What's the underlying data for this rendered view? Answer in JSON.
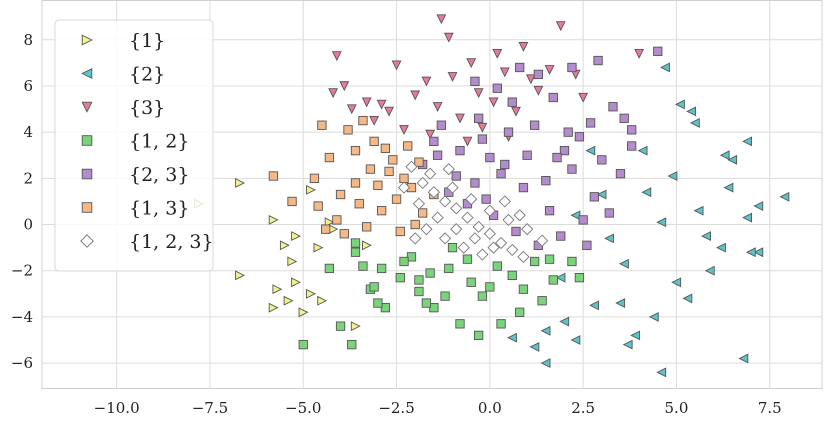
{
  "chart_data": {
    "type": "scatter",
    "title": "",
    "xlabel": "",
    "ylabel": "",
    "xlim": [
      -12.0,
      8.9
    ],
    "ylim": [
      -7.1,
      9.7
    ],
    "xticks": [
      -10.0,
      -7.5,
      -5.0,
      -2.5,
      0.0,
      2.5,
      5.0,
      7.5
    ],
    "xtick_labels": [
      "−10.0",
      "−7.5",
      "−5.0",
      "−2.5",
      "0.0",
      "2.5",
      "5.0",
      "7.5"
    ],
    "yticks": [
      -6,
      -4,
      -2,
      0,
      2,
      4,
      6,
      8
    ],
    "ytick_labels": [
      "−6",
      "−4",
      "−2",
      "0",
      "2",
      "4",
      "6",
      "8"
    ],
    "grid": true,
    "legend_position": "upper-left",
    "series": [
      {
        "name": "{1}",
        "marker": "triangle-right",
        "color": "#f2f28c",
        "points": [
          [
            -6.7,
            1.8
          ],
          [
            -7.8,
            0.9
          ],
          [
            -5.8,
            0.2
          ],
          [
            -5.5,
            -0.9
          ],
          [
            -5.3,
            -1.6
          ],
          [
            -5.7,
            -2.8
          ],
          [
            -5.4,
            -3.3
          ],
          [
            -5.2,
            -2.5
          ],
          [
            -4.8,
            -3.0
          ],
          [
            -5.0,
            -3.8
          ],
          [
            -4.5,
            -3.3
          ],
          [
            -5.2,
            -0.5
          ],
          [
            -4.6,
            -1.0
          ],
          [
            -5.8,
            -3.6
          ],
          [
            -6.7,
            -2.2
          ],
          [
            -4.2,
            -0.2
          ],
          [
            -3.6,
            -4.4
          ],
          [
            -3.3,
            -0.9
          ],
          [
            -4.8,
            1.5
          ],
          [
            -4.3,
            0.1
          ]
        ]
      },
      {
        "name": "{2}",
        "marker": "triangle-left",
        "color": "#5bc4ca",
        "points": [
          [
            4.7,
            6.8
          ],
          [
            5.4,
            4.9
          ],
          [
            5.1,
            5.2
          ],
          [
            5.5,
            4.4
          ],
          [
            6.9,
            3.6
          ],
          [
            6.5,
            2.8
          ],
          [
            6.3,
            3.0
          ],
          [
            7.9,
            1.2
          ],
          [
            7.2,
            -1.2
          ],
          [
            7.0,
            -1.2
          ],
          [
            6.8,
            -5.8
          ],
          [
            4.6,
            -6.4
          ],
          [
            1.5,
            -6.0
          ],
          [
            1.5,
            -4.6
          ],
          [
            2.3,
            -5.0
          ],
          [
            3.7,
            -5.2
          ],
          [
            5.0,
            -2.5
          ],
          [
            5.8,
            -0.5
          ],
          [
            4.2,
            1.4
          ],
          [
            3.2,
            -0.6
          ],
          [
            1.9,
            -2.3
          ],
          [
            2.7,
            3.2
          ],
          [
            2.0,
            -4.2
          ],
          [
            3.5,
            -3.4
          ],
          [
            6.4,
            1.6
          ],
          [
            5.9,
            -2.0
          ],
          [
            6.9,
            0.3
          ],
          [
            4.4,
            -4.0
          ],
          [
            2.8,
            -3.5
          ],
          [
            4.1,
            3.2
          ],
          [
            5.6,
            0.6
          ],
          [
            3.6,
            -1.7
          ],
          [
            3.0,
            1.3
          ],
          [
            0.6,
            -4.9
          ],
          [
            1.2,
            -5.3
          ],
          [
            4.9,
            2.1
          ],
          [
            6.2,
            -1.0
          ],
          [
            7.2,
            0.8
          ],
          [
            5.3,
            -3.2
          ],
          [
            3.9,
            -4.8
          ],
          [
            2.3,
            0.4
          ],
          [
            4.6,
            0.1
          ]
        ]
      },
      {
        "name": "{3}",
        "marker": "triangle-down",
        "color": "#e87a96",
        "points": [
          [
            -1.3,
            8.9
          ],
          [
            -1.1,
            8.1
          ],
          [
            1.9,
            8.6
          ],
          [
            -4.1,
            7.3
          ],
          [
            -2.5,
            6.9
          ],
          [
            -1.7,
            6.2
          ],
          [
            -3.9,
            6.0
          ],
          [
            -4.2,
            5.7
          ],
          [
            -2.9,
            5.2
          ],
          [
            -1.0,
            6.4
          ],
          [
            -0.5,
            7.0
          ],
          [
            0.2,
            7.4
          ],
          [
            0.9,
            7.7
          ],
          [
            0.4,
            6.6
          ],
          [
            -0.3,
            5.7
          ],
          [
            0.7,
            4.9
          ],
          [
            1.3,
            5.8
          ],
          [
            -2.0,
            5.6
          ],
          [
            -3.1,
            4.5
          ],
          [
            -2.3,
            4.1
          ],
          [
            -1.6,
            3.9
          ],
          [
            -0.8,
            4.6
          ],
          [
            -1.4,
            5.1
          ],
          [
            -0.2,
            4.2
          ],
          [
            0.1,
            5.3
          ],
          [
            1.1,
            6.3
          ],
          [
            1.6,
            6.7
          ],
          [
            2.3,
            6.5
          ],
          [
            -3.7,
            5.0
          ],
          [
            -0.6,
            3.6
          ],
          [
            0.5,
            3.8
          ],
          [
            -2.7,
            4.9
          ],
          [
            2.5,
            5.5
          ],
          [
            4.0,
            7.4
          ],
          [
            -3.3,
            5.3
          ]
        ]
      },
      {
        "name": "{1, 2}",
        "marker": "square",
        "color": "#7bd47b",
        "points": [
          [
            -5.0,
            -5.2
          ],
          [
            -3.7,
            -5.2
          ],
          [
            -4.0,
            -4.4
          ],
          [
            -4.3,
            -1.9
          ],
          [
            -3.6,
            -1.2
          ],
          [
            -3.2,
            -2.8
          ],
          [
            -2.8,
            -3.6
          ],
          [
            -2.4,
            -2.3
          ],
          [
            -1.9,
            -2.9
          ],
          [
            -1.5,
            -3.6
          ],
          [
            -0.8,
            -4.3
          ],
          [
            -0.3,
            -4.8
          ],
          [
            0.3,
            -4.3
          ],
          [
            0.8,
            -3.8
          ],
          [
            1.4,
            -3.3
          ],
          [
            -1.1,
            -1.9
          ],
          [
            -0.5,
            -2.5
          ],
          [
            0.2,
            -1.8
          ],
          [
            0.9,
            -2.8
          ],
          [
            1.7,
            -2.4
          ],
          [
            2.2,
            -1.6
          ],
          [
            -2.1,
            -1.4
          ],
          [
            -1.0,
            -1.0
          ],
          [
            -3.4,
            -1.8
          ],
          [
            -2.3,
            -1.6
          ],
          [
            -3.1,
            -2.7
          ],
          [
            -1.6,
            -2.1
          ],
          [
            -0.2,
            -3.1
          ],
          [
            0.6,
            -2.2
          ],
          [
            1.2,
            -1.6
          ],
          [
            -3.6,
            -0.8
          ],
          [
            -2.9,
            -1.9
          ],
          [
            -1.7,
            -3.4
          ],
          [
            -1.9,
            -2.4
          ],
          [
            -0.6,
            -1.5
          ],
          [
            0.0,
            -2.7
          ],
          [
            -1.2,
            -3.1
          ],
          [
            1.6,
            -1.5
          ],
          [
            2.4,
            -2.3
          ],
          [
            -3.0,
            -3.4
          ]
        ]
      },
      {
        "name": "{2, 3}",
        "marker": "square",
        "color": "#b48bcc",
        "points": [
          [
            4.5,
            7.5
          ],
          [
            2.9,
            7.1
          ],
          [
            2.2,
            6.8
          ],
          [
            1.3,
            6.5
          ],
          [
            0.8,
            6.8
          ],
          [
            -0.4,
            6.2
          ],
          [
            0.2,
            5.9
          ],
          [
            1.7,
            5.5
          ],
          [
            3.3,
            5.1
          ],
          [
            3.6,
            4.6
          ],
          [
            3.8,
            4.1
          ],
          [
            2.7,
            4.4
          ],
          [
            2.1,
            4.0
          ],
          [
            1.2,
            4.3
          ],
          [
            0.5,
            4.0
          ],
          [
            -0.2,
            3.7
          ],
          [
            -0.8,
            3.2
          ],
          [
            -1.4,
            3.0
          ],
          [
            -1.8,
            2.6
          ],
          [
            -0.9,
            2.1
          ],
          [
            -0.4,
            1.8
          ],
          [
            0.3,
            2.2
          ],
          [
            0.9,
            1.6
          ],
          [
            1.5,
            1.9
          ],
          [
            2.2,
            2.4
          ],
          [
            2.8,
            1.2
          ],
          [
            3.2,
            0.5
          ],
          [
            2.5,
            0.2
          ],
          [
            1.9,
            -0.5
          ],
          [
            1.3,
            -0.9
          ],
          [
            0.7,
            -0.3
          ],
          [
            0.1,
            0.4
          ],
          [
            -0.6,
            0.9
          ],
          [
            -1.1,
            1.4
          ],
          [
            3.0,
            2.8
          ],
          [
            2.0,
            3.2
          ],
          [
            1.0,
            3.0
          ],
          [
            0.0,
            2.9
          ],
          [
            -1.3,
            4.3
          ],
          [
            -1.5,
            3.6
          ],
          [
            -0.3,
            4.6
          ],
          [
            0.6,
            5.3
          ],
          [
            3.8,
            3.4
          ],
          [
            3.5,
            2.2
          ],
          [
            2.6,
            -0.9
          ],
          [
            1.6,
            0.6
          ],
          [
            -0.1,
            1.1
          ],
          [
            2.4,
            3.8
          ],
          [
            1.8,
            2.9
          ],
          [
            0.4,
            2.6
          ]
        ]
      },
      {
        "name": "{1, 3}",
        "marker": "square",
        "color": "#f5b886",
        "points": [
          [
            -5.8,
            2.1
          ],
          [
            -5.3,
            1.0
          ],
          [
            -4.7,
            2.0
          ],
          [
            -4.3,
            2.9
          ],
          [
            -4.0,
            1.3
          ],
          [
            -3.8,
            4.1
          ],
          [
            -3.6,
            3.2
          ],
          [
            -3.4,
            4.5
          ],
          [
            -3.2,
            2.4
          ],
          [
            -3.0,
            1.7
          ],
          [
            -2.8,
            3.3
          ],
          [
            -2.6,
            2.8
          ],
          [
            -2.5,
            1.1
          ],
          [
            -2.3,
            2.0
          ],
          [
            -2.1,
            1.6
          ],
          [
            -1.9,
            2.7
          ],
          [
            -1.8,
            0.5
          ],
          [
            -2.0,
            0.0
          ],
          [
            -2.4,
            -0.3
          ],
          [
            -2.9,
            0.6
          ],
          [
            -3.5,
            0.9
          ],
          [
            -4.1,
            0.2
          ],
          [
            -4.6,
            0.8
          ],
          [
            -3.9,
            -0.4
          ],
          [
            -3.3,
            -0.1
          ],
          [
            -2.7,
            2.3
          ],
          [
            -2.2,
            3.4
          ],
          [
            -4.5,
            4.3
          ],
          [
            -1.5,
            1.3
          ],
          [
            -3.6,
            1.8
          ],
          [
            -4.4,
            -0.2
          ],
          [
            -3.1,
            3.6
          ]
        ]
      },
      {
        "name": "{1, 2, 3}",
        "marker": "diamond",
        "color": "#ffffff",
        "points": [
          [
            -2.1,
            2.5
          ],
          [
            -1.8,
            1.8
          ],
          [
            -1.5,
            1.4
          ],
          [
            -1.2,
            1.0
          ],
          [
            -0.9,
            0.7
          ],
          [
            -0.6,
            0.3
          ],
          [
            -0.3,
            -0.1
          ],
          [
            0.0,
            -0.4
          ],
          [
            0.3,
            -0.8
          ],
          [
            0.6,
            -1.1
          ],
          [
            0.9,
            -1.4
          ],
          [
            -1.9,
            0.9
          ],
          [
            -1.4,
            0.3
          ],
          [
            -0.9,
            -0.2
          ],
          [
            -0.4,
            -0.6
          ],
          [
            0.1,
            -1.0
          ],
          [
            -1.7,
            -0.2
          ],
          [
            -1.2,
            -0.6
          ],
          [
            -0.7,
            -1.0
          ],
          [
            -2.3,
            1.6
          ],
          [
            -1.6,
            2.2
          ],
          [
            -1.0,
            1.6
          ],
          [
            -0.5,
            1.1
          ],
          [
            0.0,
            0.6
          ],
          [
            0.5,
            0.2
          ],
          [
            1.0,
            -0.2
          ],
          [
            1.4,
            -0.7
          ],
          [
            -2.0,
            -0.6
          ],
          [
            -0.2,
            -1.3
          ],
          [
            0.4,
            1.0
          ],
          [
            -1.1,
            2.4
          ],
          [
            0.8,
            0.4
          ]
        ]
      }
    ]
  }
}
